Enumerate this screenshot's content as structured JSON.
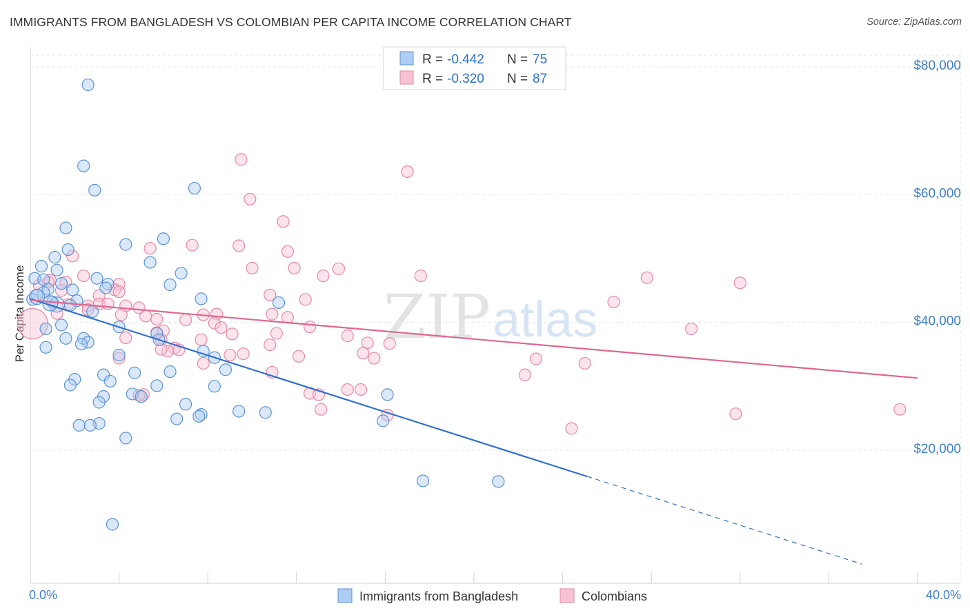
{
  "title": "IMMIGRANTS FROM BANGLADESH VS COLOMBIAN PER CAPITA INCOME CORRELATION CHART",
  "source": "Source: ZipAtlas.com",
  "colors": {
    "blue_fill": "#aecdf2",
    "blue_stroke": "#5b93d6",
    "blue_line": "#2f6fd0",
    "pink_fill": "#f7c3d2",
    "pink_stroke": "#e689a6",
    "pink_line": "#e06690",
    "tick_text": "#3f7fcb"
  },
  "legend": {
    "r_label": "R =",
    "n_label": "N =",
    "rows": [
      {
        "r": "-0.442",
        "n": "75"
      },
      {
        "r": "-0.320",
        "n": "87"
      }
    ]
  },
  "watermark": {
    "zip": "ZIP",
    "atlas": "atlas"
  },
  "chart_data": {
    "type": "scatter",
    "ylabel": "Per Capita Income",
    "xlim": [
      0,
      40
    ],
    "ylim": [
      0,
      80000
    ],
    "x_tick_labels": [
      "0.0%",
      "40.0%"
    ],
    "y_ticks": [
      {
        "value": 20000,
        "label": "$20,000"
      },
      {
        "value": 40000,
        "label": "$40,000"
      },
      {
        "value": 60000,
        "label": "$60,000"
      },
      {
        "value": 80000,
        "label": "$80,000"
      }
    ],
    "grid": true,
    "series": [
      {
        "name": "Immigrants from Bangladesh",
        "trend": {
          "x0": 0,
          "y0": 43700,
          "x1": 25.1,
          "y1": 15900,
          "dash_x1": 37.5
        },
        "points": [
          [
            2.6,
            77200
          ],
          [
            2.4,
            64500
          ],
          [
            2.9,
            60700
          ],
          [
            7.4,
            61000
          ],
          [
            1.6,
            54800
          ],
          [
            6.0,
            53100
          ],
          [
            4.3,
            52200
          ],
          [
            1.7,
            51400
          ],
          [
            1.1,
            50200
          ],
          [
            5.4,
            49400
          ],
          [
            0.5,
            48800
          ],
          [
            1.2,
            48200
          ],
          [
            6.8,
            47700
          ],
          [
            3.0,
            46900
          ],
          [
            0.2,
            46900
          ],
          [
            0.6,
            46700
          ],
          [
            1.4,
            46100
          ],
          [
            6.3,
            45900
          ],
          [
            3.5,
            46000
          ],
          [
            0.8,
            45200
          ],
          [
            1.9,
            45100
          ],
          [
            0.6,
            44700
          ],
          [
            3.4,
            45400
          ],
          [
            0.3,
            44300
          ],
          [
            0.1,
            43600
          ],
          [
            7.7,
            43700
          ],
          [
            1.0,
            43200
          ],
          [
            2.1,
            43400
          ],
          [
            11.2,
            43100
          ],
          [
            1.8,
            42700
          ],
          [
            2.8,
            41700
          ],
          [
            1.4,
            39600
          ],
          [
            4.0,
            39300
          ],
          [
            0.7,
            39000
          ],
          [
            5.7,
            38300
          ],
          [
            1.6,
            37500
          ],
          [
            2.4,
            37500
          ],
          [
            5.8,
            37300
          ],
          [
            2.6,
            36900
          ],
          [
            2.3,
            36600
          ],
          [
            0.7,
            36100
          ],
          [
            7.8,
            35500
          ],
          [
            4.0,
            34900
          ],
          [
            8.3,
            34500
          ],
          [
            6.3,
            32300
          ],
          [
            8.8,
            32600
          ],
          [
            3.3,
            31800
          ],
          [
            4.7,
            32100
          ],
          [
            2.0,
            31100
          ],
          [
            3.6,
            30800
          ],
          [
            8.3,
            30000
          ],
          [
            5.7,
            30100
          ],
          [
            1.8,
            30200
          ],
          [
            4.6,
            28800
          ],
          [
            16.1,
            28700
          ],
          [
            3.3,
            28400
          ],
          [
            5.0,
            28400
          ],
          [
            3.1,
            27500
          ],
          [
            7.0,
            27200
          ],
          [
            9.4,
            26100
          ],
          [
            10.6,
            25900
          ],
          [
            7.7,
            25600
          ],
          [
            7.6,
            25300
          ],
          [
            6.6,
            24900
          ],
          [
            15.9,
            24600
          ],
          [
            3.1,
            24200
          ],
          [
            2.2,
            23900
          ],
          [
            2.7,
            23900
          ],
          [
            4.3,
            21900
          ],
          [
            17.7,
            15200
          ],
          [
            21.1,
            15100
          ],
          [
            3.7,
            8400
          ],
          [
            0.3,
            44000
          ],
          [
            1.2,
            42800
          ],
          [
            0.9,
            43000
          ]
        ]
      },
      {
        "name": "Colombians",
        "trend": {
          "x0": 0,
          "y0": 43500,
          "x1": 40,
          "y1": 31300
        },
        "points": [
          [
            0.1,
            39800
          ],
          [
            9.5,
            65500
          ],
          [
            17.0,
            63600
          ],
          [
            9.9,
            59300
          ],
          [
            11.4,
            55800
          ],
          [
            7.3,
            52100
          ],
          [
            9.4,
            52000
          ],
          [
            5.4,
            51600
          ],
          [
            11.6,
            51100
          ],
          [
            1.9,
            50400
          ],
          [
            11.9,
            48500
          ],
          [
            13.9,
            48400
          ],
          [
            10.0,
            48500
          ],
          [
            2.4,
            47300
          ],
          [
            13.2,
            47300
          ],
          [
            17.6,
            47300
          ],
          [
            27.8,
            47000
          ],
          [
            0.9,
            46600
          ],
          [
            0.8,
            46300
          ],
          [
            1.6,
            46300
          ],
          [
            32.0,
            46200
          ],
          [
            0.4,
            45800
          ],
          [
            4.0,
            46000
          ],
          [
            3.8,
            45100
          ],
          [
            1.4,
            45000
          ],
          [
            4.0,
            44800
          ],
          [
            3.1,
            44200
          ],
          [
            10.8,
            44300
          ],
          [
            12.4,
            43600
          ],
          [
            26.3,
            43200
          ],
          [
            3.1,
            42900
          ],
          [
            3.5,
            42900
          ],
          [
            4.3,
            42600
          ],
          [
            4.9,
            42300
          ],
          [
            2.6,
            42600
          ],
          [
            1.7,
            42800
          ],
          [
            2.6,
            42000
          ],
          [
            1.2,
            41400
          ],
          [
            8.4,
            41300
          ],
          [
            7.8,
            41200
          ],
          [
            4.1,
            41200
          ],
          [
            10.9,
            41300
          ],
          [
            11.6,
            40800
          ],
          [
            5.2,
            41000
          ],
          [
            5.7,
            40500
          ],
          [
            7.0,
            40400
          ],
          [
            8.3,
            39900
          ],
          [
            12.6,
            39300
          ],
          [
            8.6,
            39200
          ],
          [
            29.8,
            39000
          ],
          [
            5.7,
            38400
          ],
          [
            6.0,
            38700
          ],
          [
            9.1,
            38200
          ],
          [
            11.1,
            38300
          ],
          [
            14.3,
            37900
          ],
          [
            4.3,
            37600
          ],
          [
            5.9,
            37300
          ],
          [
            7.7,
            37300
          ],
          [
            16.2,
            36700
          ],
          [
            10.8,
            36500
          ],
          [
            15.2,
            36800
          ],
          [
            6.5,
            36000
          ],
          [
            6.2,
            35500
          ],
          [
            6.7,
            35700
          ],
          [
            5.9,
            35800
          ],
          [
            15.0,
            35200
          ],
          [
            9.0,
            34900
          ],
          [
            9.6,
            35100
          ],
          [
            12.1,
            34700
          ],
          [
            15.5,
            34400
          ],
          [
            4.0,
            34400
          ],
          [
            22.8,
            34300
          ],
          [
            25.0,
            33600
          ],
          [
            7.8,
            33600
          ],
          [
            10.9,
            32200
          ],
          [
            22.3,
            31800
          ],
          [
            14.3,
            29500
          ],
          [
            14.9,
            29500
          ],
          [
            12.6,
            28900
          ],
          [
            13.0,
            28700
          ],
          [
            5.1,
            28700
          ],
          [
            4.9,
            28600
          ],
          [
            13.1,
            26400
          ],
          [
            16.1,
            25500
          ],
          [
            39.2,
            26400
          ],
          [
            31.8,
            25700
          ],
          [
            24.4,
            23400
          ]
        ]
      }
    ]
  }
}
